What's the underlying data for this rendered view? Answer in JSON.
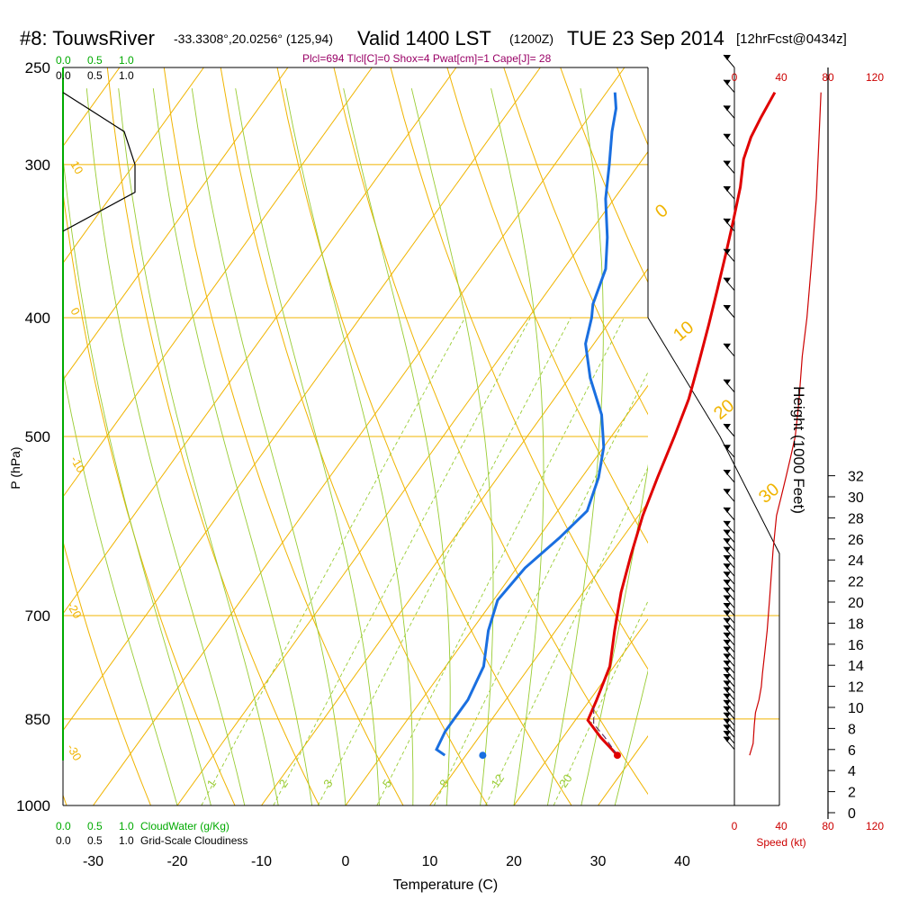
{
  "header": {
    "station": "#8: TouwsRiver",
    "coords": "-33.3308°,20.0256° (125,94)",
    "valid": "Valid 1400 LST",
    "zulu": "(1200Z)",
    "date": "TUE 23 Sep 2014",
    "forecast": "[12hrFcst@0434z]",
    "params": "Plcl=694 Tlcl[C]=0 Shox=4 Pwat[cm]=1 Cape[J]= 28"
  },
  "colors": {
    "isobar": "#f0b400",
    "dry_adiabat": "#f0b400",
    "moist_adiabat": "#99cc33",
    "mixing_ratio": "#99cc33",
    "temperature": "#e00000",
    "dewpoint": "#1a6fe0",
    "cloud": "#00aa00",
    "wind_speed": "#cc0000",
    "parcel": "#663366"
  },
  "axes": {
    "x_label": "Temperature (C)",
    "x_ticks": [
      "-30",
      "-20",
      "-10",
      "0",
      "10",
      "20",
      "30",
      "40"
    ],
    "y_label": "P (hPa)",
    "y_ticks": [
      "250",
      "300",
      "400",
      "500",
      "700",
      "850",
      "1000"
    ],
    "height_label": "Height (1000 Feet)",
    "height_ticks": [
      "0",
      "2",
      "4",
      "6",
      "8",
      "10",
      "12",
      "14",
      "16",
      "18",
      "20",
      "22",
      "24",
      "26",
      "28",
      "30",
      "32"
    ],
    "speed_label": "Speed (kt)",
    "speed_ticks": [
      "0",
      "40",
      "80",
      "120"
    ]
  },
  "cloud_panel": {
    "top_green_ticks": [
      "0.0",
      "0.5",
      "1.0"
    ],
    "top_black_ticks": [
      "0.0",
      "0.5",
      "1.0"
    ],
    "bottom_green_label": "CloudWater (g/Kg)",
    "bottom_black_label": "Grid-Scale Cloudiness",
    "bottom_green_ticks": [
      "0.0",
      "0.5",
      "1.0"
    ],
    "bottom_black_ticks": [
      "0.0",
      "0.5",
      "1.0"
    ]
  },
  "chart_data": {
    "type": "line",
    "title": "#8: TouwsRiver  Valid 1400 LST TUE 23 Sep 2014",
    "xlabel": "Temperature (C)",
    "ylabel": "P (hPa)",
    "xlim": [
      -35,
      45
    ],
    "ylim": [
      1000,
      250
    ],
    "pressure_levels": [
      1000,
      850,
      700,
      500,
      400,
      300,
      250
    ],
    "dry_adiabat_labels": [
      "10",
      "0",
      "-10",
      "-20",
      "-30",
      "0",
      "10",
      "20",
      "30"
    ],
    "mixing_ratio_labels": [
      "1",
      "2",
      "3",
      "5",
      "8",
      "12",
      "20"
    ],
    "series": [
      {
        "name": "Temperature",
        "points": [
          [
            28.0,
            910
          ],
          [
            24.5,
            880
          ],
          [
            21.5,
            852
          ],
          [
            20.8,
            820
          ],
          [
            19.5,
            770
          ],
          [
            17.0,
            720
          ],
          [
            14.5,
            670
          ],
          [
            12.5,
            625
          ],
          [
            10.5,
            580
          ],
          [
            9.0,
            540
          ],
          [
            7.5,
            500
          ],
          [
            6.0,
            466
          ],
          [
            4.0,
            434
          ],
          [
            2.0,
            405
          ],
          [
            0.0,
            379
          ],
          [
            -2.0,
            355
          ],
          [
            -4.0,
            333
          ],
          [
            -6.0,
            313
          ],
          [
            -8.0,
            297
          ],
          [
            -9.0,
            285
          ],
          [
            -9.5,
            275
          ],
          [
            -10.0,
            262
          ]
        ]
      },
      {
        "name": "Dewpoint",
        "points": [
          [
            7.5,
            910
          ],
          [
            6.0,
            900
          ],
          [
            5.5,
            870
          ],
          [
            5.5,
            820
          ],
          [
            4.5,
            770
          ],
          [
            2.0,
            720
          ],
          [
            0.5,
            680
          ],
          [
            1.0,
            640
          ],
          [
            2.5,
            605
          ],
          [
            3.5,
            575
          ],
          [
            2.0,
            540
          ],
          [
            0.0,
            510
          ],
          [
            -3.0,
            480
          ],
          [
            -7.5,
            448
          ],
          [
            -11.0,
            420
          ],
          [
            -12.5,
            400
          ],
          [
            -13.5,
            390
          ],
          [
            -15.0,
            365
          ],
          [
            -17.5,
            344
          ],
          [
            -21.0,
            320
          ],
          [
            -23.5,
            300
          ],
          [
            -26.0,
            282
          ],
          [
            -27.5,
            270
          ],
          [
            -29.0,
            262
          ]
        ]
      },
      {
        "name": "Parcel",
        "points": [
          [
            28.0,
            910
          ],
          [
            25.0,
            880
          ],
          [
            22.5,
            858
          ],
          [
            21.0,
            830
          ]
        ]
      },
      {
        "name": "Surface Dewpoint Marker",
        "points": [
          [
            12.0,
            910
          ]
        ]
      },
      {
        "name": "Surface Temperature Marker",
        "points": [
          [
            28.0,
            910
          ]
        ]
      },
      {
        "name": "Wind Speed (kt)",
        "points": [
          [
            13,
            910
          ],
          [
            16,
            890
          ],
          [
            17,
            860
          ],
          [
            18,
            840
          ],
          [
            21,
            820
          ],
          [
            23,
            800
          ],
          [
            24,
            780
          ],
          [
            26,
            750
          ],
          [
            28,
            720
          ],
          [
            30,
            680
          ],
          [
            33,
            620
          ],
          [
            36,
            580
          ],
          [
            40,
            560
          ],
          [
            44,
            540
          ],
          [
            48,
            520
          ],
          [
            52,
            500
          ],
          [
            55,
            470
          ],
          [
            58,
            430
          ],
          [
            62,
            400
          ],
          [
            66,
            360
          ],
          [
            70,
            320
          ],
          [
            72,
            290
          ],
          [
            74,
            262
          ]
        ]
      },
      {
        "name": "Grid-Scale Cloudiness",
        "points": [
          [
            0.0,
            262
          ],
          [
            0.85,
            282
          ],
          [
            1.0,
            300
          ],
          [
            1.0,
            316
          ],
          [
            0.0,
            340
          ]
        ]
      }
    ],
    "wind_barb_levels": [
      250,
      262,
      275,
      290,
      305,
      320,
      340,
      360,
      380,
      400,
      430,
      460,
      500,
      520,
      545,
      565,
      585,
      600,
      610,
      620,
      630,
      640,
      650,
      660,
      670,
      680,
      690,
      700,
      710,
      720,
      730,
      740,
      750,
      760,
      770,
      780,
      790,
      800,
      810,
      820,
      830,
      840,
      850,
      860,
      870,
      880,
      890,
      900
    ]
  }
}
